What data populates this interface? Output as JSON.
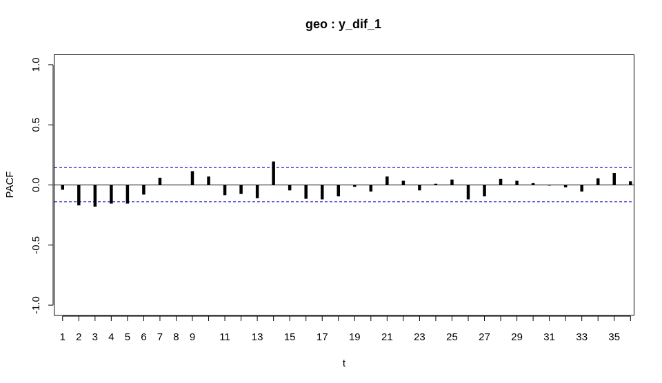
{
  "chart_data": {
    "type": "bar",
    "title": "geo : y_dif_1",
    "xlabel": "t",
    "ylabel": "PACF",
    "x": [
      1,
      2,
      3,
      4,
      5,
      6,
      7,
      8,
      9,
      10,
      11,
      12,
      13,
      14,
      15,
      16,
      17,
      18,
      19,
      20,
      21,
      22,
      23,
      24,
      25,
      26,
      27,
      28,
      29,
      30,
      31,
      32,
      33,
      34,
      35,
      36
    ],
    "values": [
      -0.04,
      -0.17,
      -0.18,
      -0.155,
      -0.155,
      -0.08,
      0.06,
      0.0,
      0.115,
      0.07,
      -0.085,
      -0.075,
      -0.11,
      0.195,
      -0.045,
      -0.115,
      -0.12,
      -0.095,
      -0.015,
      -0.055,
      0.07,
      0.035,
      -0.045,
      0.01,
      0.045,
      -0.12,
      -0.095,
      0.05,
      0.035,
      0.015,
      -0.005,
      -0.02,
      -0.055,
      0.055,
      0.1,
      0.03
    ],
    "confidence_band": [
      0.145,
      -0.14
    ],
    "xlim": [
      0.5,
      36.2
    ],
    "ylim": [
      -1.08,
      1.08
    ],
    "x_ticks": [
      1,
      2,
      3,
      4,
      5,
      6,
      7,
      8,
      9,
      11,
      13,
      15,
      17,
      19,
      21,
      23,
      25,
      27,
      29,
      31,
      33,
      35
    ],
    "x_tick_labels": [
      "1",
      "2",
      "3",
      "4",
      "5",
      "6",
      "7",
      "8",
      "9",
      "11",
      "13",
      "15",
      "17",
      "19",
      "21",
      "23",
      "25",
      "27",
      "29",
      "31",
      "33",
      "35"
    ],
    "y_ticks": [
      -1.0,
      -0.5,
      0.0,
      0.5,
      1.0
    ],
    "y_tick_labels": [
      "-1.0",
      "-0.5",
      "0.0",
      "0.5",
      "1.0"
    ],
    "bar_color": "#000000",
    "band_color": "#0000cc",
    "grid": false
  }
}
